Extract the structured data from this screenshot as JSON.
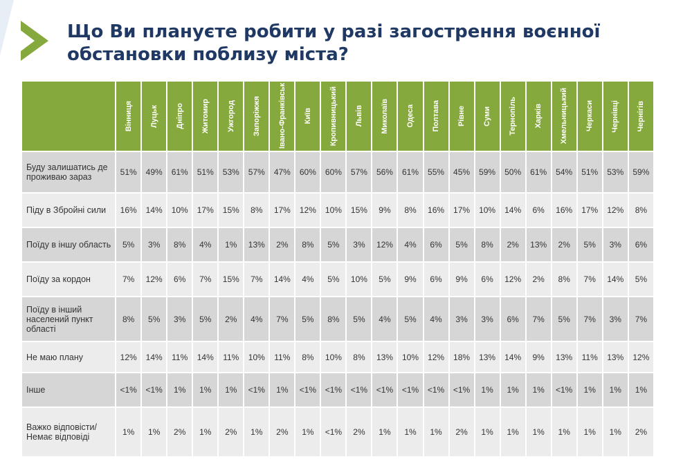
{
  "title": "Що Ви плануєте робити у разі загострення воєнної\nобстановки поблизу міста?",
  "colors": {
    "header_green": "#86a93d",
    "title_blue": "#1f3864",
    "row_dark": "#d6d6d6",
    "row_light": "#ececec"
  },
  "chart_data": {
    "type": "table",
    "title": "Що Ви плануєте робити у разі загострення воєнної обстановки поблизу міста?",
    "columns": [
      "Вінниця",
      "Луцьк",
      "Дніпро",
      "Житомир",
      "Ужгород",
      "Запоріжжя",
      "Івано-Франківськ",
      "Київ",
      "Кропивницький",
      "Львів",
      "Миколаїв",
      "Одеса",
      "Полтава",
      "Рівне",
      "Суми",
      "Тернопіль",
      "Харків",
      "Хмельницький",
      "Черкаси",
      "Чернівці",
      "Чернігів"
    ],
    "rows": [
      {
        "label": "Буду залишатись де проживаю зараз",
        "values": [
          "51%",
          "49%",
          "61%",
          "51%",
          "53%",
          "57%",
          "47%",
          "60%",
          "60%",
          "57%",
          "56%",
          "61%",
          "55%",
          "45%",
          "59%",
          "50%",
          "61%",
          "54%",
          "51%",
          "53%",
          "59%"
        ]
      },
      {
        "label": "Піду в Збройні сили",
        "values": [
          "16%",
          "14%",
          "10%",
          "17%",
          "15%",
          "8%",
          "17%",
          "12%",
          "10%",
          "15%",
          "9%",
          "8%",
          "16%",
          "17%",
          "10%",
          "14%",
          "6%",
          "16%",
          "17%",
          "12%",
          "8%"
        ]
      },
      {
        "label": "Поїду в іншу область",
        "values": [
          "5%",
          "3%",
          "8%",
          "4%",
          "1%",
          "13%",
          "2%",
          "8%",
          "5%",
          "3%",
          "12%",
          "4%",
          "6%",
          "5%",
          "8%",
          "2%",
          "13%",
          "2%",
          "5%",
          "3%",
          "6%"
        ]
      },
      {
        "label": "Поїду за кордон",
        "values": [
          "7%",
          "12%",
          "6%",
          "7%",
          "15%",
          "7%",
          "14%",
          "4%",
          "5%",
          "10%",
          "5%",
          "9%",
          "6%",
          "9%",
          "6%",
          "12%",
          "2%",
          "8%",
          "7%",
          "14%",
          "5%"
        ]
      },
      {
        "label": "Поїду в інший населений пункт області",
        "values": [
          "8%",
          "5%",
          "3%",
          "5%",
          "2%",
          "4%",
          "7%",
          "5%",
          "8%",
          "5%",
          "4%",
          "5%",
          "4%",
          "3%",
          "3%",
          "6%",
          "7%",
          "5%",
          "7%",
          "3%",
          "7%"
        ]
      },
      {
        "label": "Не маю плану",
        "values": [
          "12%",
          "14%",
          "11%",
          "14%",
          "11%",
          "10%",
          "11%",
          "8%",
          "10%",
          "8%",
          "13%",
          "10%",
          "12%",
          "18%",
          "13%",
          "14%",
          "9%",
          "13%",
          "11%",
          "13%",
          "12%"
        ]
      },
      {
        "label": "Інше",
        "values": [
          "<1%",
          "<1%",
          "1%",
          "1%",
          "1%",
          "<1%",
          "1%",
          "<1%",
          "<1%",
          "<1%",
          "<1%",
          "<1%",
          "<1%",
          "<1%",
          "1%",
          "1%",
          "1%",
          "<1%",
          "1%",
          "1%",
          "1%"
        ]
      },
      {
        "label": "Важко відповісти/Немає відповіді",
        "values": [
          "1%",
          "1%",
          "2%",
          "1%",
          "2%",
          "1%",
          "2%",
          "1%",
          "<1%",
          "2%",
          "1%",
          "1%",
          "1%",
          "2%",
          "1%",
          "1%",
          "1%",
          "1%",
          "1%",
          "1%",
          "2%"
        ]
      }
    ]
  }
}
